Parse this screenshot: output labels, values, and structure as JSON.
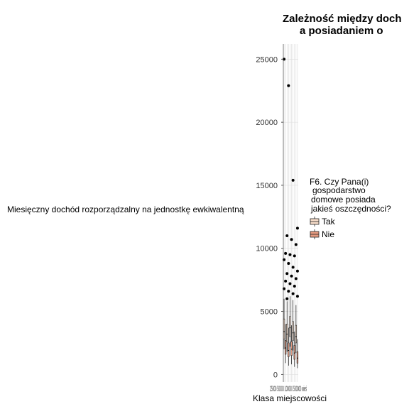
{
  "chart_data": {
    "type": "box",
    "title": [
      "Zależność między doch",
      "a posiadaniem o"
    ],
    "ylabel": "Miesięczny dochód rozporządzalny na jednostkę ewkiwalentną",
    "xlabel": "Klasa miejscowości",
    "xtick_text": "25000 50000 100000 500000 wieś",
    "ylim": [
      -600,
      26200
    ],
    "yticks": [
      0,
      5000,
      10000,
      15000,
      20000,
      25000
    ],
    "grid": true,
    "legend": {
      "title": [
        "F6. Czy Pana(i)",
        "gospodarstwo",
        "domowe posiada",
        "jakieś oszczędności?"
      ],
      "entries": [
        {
          "name": "Tak",
          "color": "#f6dcc9"
        },
        {
          "name": "Nie",
          "color": "#e59a80"
        }
      ],
      "placement": "right"
    },
    "groups": 10,
    "outliers": [
      25000,
      22900,
      15400,
      11600,
      11000,
      10700,
      10300,
      9600,
      9500,
      9400,
      9100,
      8800,
      8500,
      8200,
      8000,
      7800,
      7600,
      7400,
      7200,
      7000,
      6800,
      6600,
      6400,
      6200,
      6000
    ],
    "box_ranges": [
      {
        "low": 2000,
        "q1": 2800,
        "median": 3400,
        "q3": 4400,
        "high": 6000
      },
      {
        "low": 900,
        "q1": 1600,
        "median": 2100,
        "q3": 2700,
        "high": 4000
      },
      {
        "low": 1800,
        "q1": 2600,
        "median": 3200,
        "q3": 4000,
        "high": 5800
      },
      {
        "low": 700,
        "q1": 1400,
        "median": 1900,
        "q3": 2500,
        "high": 3700
      },
      {
        "low": 2200,
        "q1": 3000,
        "median": 3700,
        "q3": 4600,
        "high": 6200
      },
      {
        "low": 800,
        "q1": 1500,
        "median": 2000,
        "q3": 2600,
        "high": 3900
      },
      {
        "low": 1900,
        "q1": 2700,
        "median": 3300,
        "q3": 4200,
        "high": 5900
      },
      {
        "low": 600,
        "q1": 1200,
        "median": 1700,
        "q3": 2300,
        "high": 3400
      },
      {
        "low": 1700,
        "q1": 2500,
        "median": 3000,
        "q3": 3900,
        "high": 5500
      },
      {
        "low": 500,
        "q1": 900,
        "median": 1300,
        "q3": 1800,
        "high": 2800
      }
    ]
  }
}
